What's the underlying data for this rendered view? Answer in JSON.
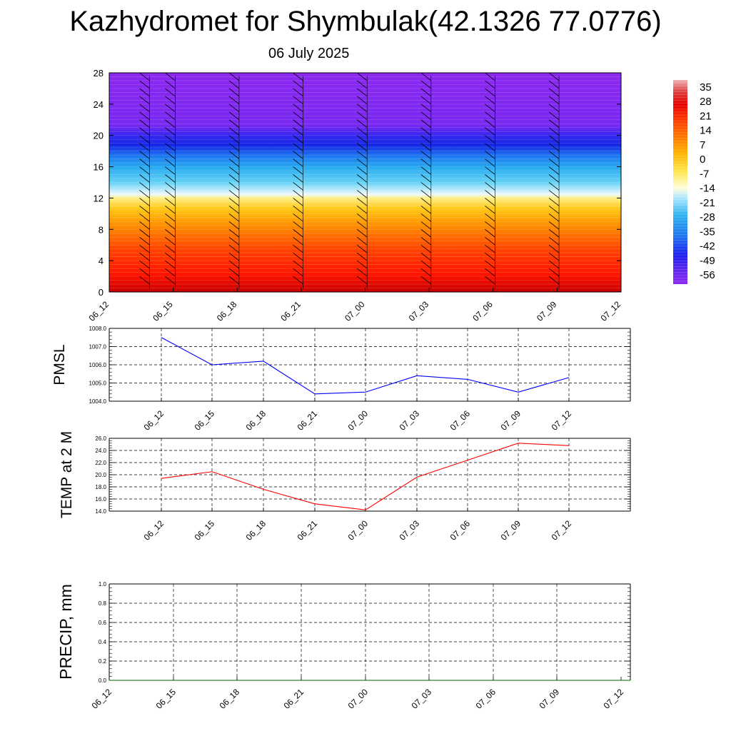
{
  "page": {
    "title": "Kazhydromet for Shymbulak(42.1326 77.0776)",
    "subtitle": "06 July 2025"
  },
  "chart_data": [
    {
      "type": "heatmap",
      "title": "",
      "x_ticks": [
        "06_12",
        "06_15",
        "06_18",
        "06_21",
        "07_00",
        "07_03",
        "07_06",
        "07_09",
        "07_12"
      ],
      "y_ticks": [
        0,
        4,
        8,
        12,
        16,
        20,
        24,
        28
      ],
      "ylim": [
        0,
        28
      ],
      "colorbar_labels": [
        "35",
        "28",
        "21",
        "14",
        "7",
        "0",
        "-7",
        "-14",
        "-21",
        "-28",
        "-35",
        "-42",
        "-49",
        "-56"
      ],
      "colormap": [
        "#c80000",
        "#ff2a00",
        "#ff6a00",
        "#ffa000",
        "#ffd23c",
        "#fffac8",
        "#d2f0ff",
        "#32c8f0",
        "#1e8cf0",
        "#0a28f0",
        "#6428f0",
        "#8c28f0"
      ],
      "wind_barbs": true
    },
    {
      "type": "line",
      "ylabel": "PMSL",
      "x": [
        "06_12",
        "06_15",
        "06_18",
        "06_21",
        "07_00",
        "07_03",
        "07_06",
        "07_09",
        "07_12"
      ],
      "series": [
        {
          "values": [
            1007.5,
            1006.0,
            1006.2,
            1004.4,
            1004.5,
            1005.4,
            1005.2,
            1004.5,
            1005.3
          ],
          "color": "#0000ff"
        }
      ],
      "ylim": [
        1004.0,
        1008.0
      ],
      "y_ticks": [
        "1004.0",
        "1005.0",
        "1006.0",
        "1007.0",
        "1008.0"
      ],
      "grid": true
    },
    {
      "type": "line",
      "ylabel": "TEMP at 2 M",
      "x": [
        "06_12",
        "06_15",
        "06_18",
        "06_21",
        "07_00",
        "07_03",
        "07_06",
        "07_09",
        "07_12"
      ],
      "series": [
        {
          "values": [
            19.4,
            20.5,
            17.6,
            15.2,
            14.2,
            19.6,
            22.4,
            25.2,
            24.8
          ],
          "color": "#ff0000"
        }
      ],
      "ylim": [
        14.0,
        26.0
      ],
      "y_ticks": [
        "14.0",
        "16.0",
        "18.0",
        "20.0",
        "22.0",
        "24.0",
        "26.0"
      ],
      "grid": true
    },
    {
      "type": "line",
      "ylabel": "PRECIP, mm",
      "x": [
        "06_12",
        "06_15",
        "06_18",
        "06_21",
        "07_00",
        "07_03",
        "07_06",
        "07_09",
        "07_12"
      ],
      "series": [
        {
          "values": [
            0,
            0,
            0,
            0,
            0,
            0,
            0,
            0,
            0
          ],
          "color": "#006400"
        }
      ],
      "ylim": [
        0.0,
        1.0
      ],
      "y_ticks": [
        "0.0",
        "0.2",
        "0.4",
        "0.6",
        "0.8",
        "1.0"
      ],
      "grid": true
    }
  ]
}
